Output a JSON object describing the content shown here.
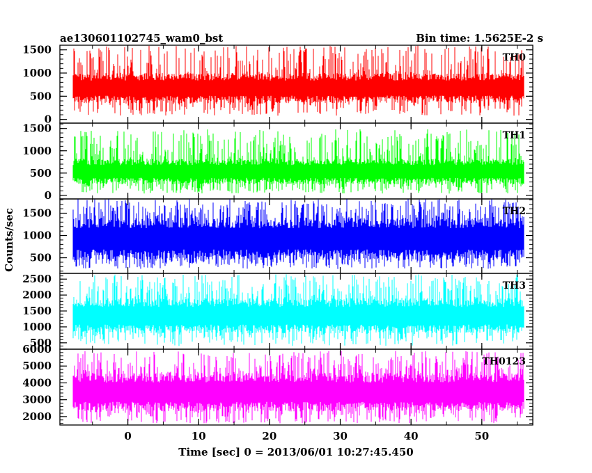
{
  "header": {
    "left_title": "ae130601102745_wam0_bst",
    "right_title": "Bin time: 1.5625E-2 s"
  },
  "chart_data": {
    "type": "line",
    "title": "ae130601102745_wam0_bst",
    "subtitle": "Bin time: 1.5625E-2 s",
    "xlabel": "Time [sec] 0 = 2013/06/01 10:27:45.450",
    "ylabel": "Counts/sec",
    "xlim": [
      -9.6,
      57.2
    ],
    "x_ticks": [
      "0",
      "10",
      "20",
      "30",
      "40",
      "50"
    ],
    "x_tick_values": [
      0,
      10,
      20,
      30,
      40,
      50
    ],
    "data_x_range": [
      -7.8,
      56.0
    ],
    "bin_time_s": 0.015625,
    "grid": false,
    "legend": "none",
    "panels": [
      {
        "name": "TH0",
        "color": "#ff0000",
        "ylim": [
          -80,
          1600
        ],
        "y_ticks": [
          0,
          500,
          1000,
          1500
        ],
        "y_tick_labels": [
          "0",
          "500",
          "1000",
          "1500"
        ],
        "typical_range": [
          350,
          1000
        ],
        "approx_min": 80,
        "approx_max": 1600
      },
      {
        "name": "TH1",
        "color": "#00ff00",
        "ylim": [
          -80,
          1620
        ],
        "y_ticks": [
          0,
          500,
          1000,
          1500
        ],
        "y_tick_labels": [
          "0",
          "500",
          "1000",
          "1500"
        ],
        "typical_range": [
          250,
          820
        ],
        "approx_min": 40,
        "approx_max": 1480
      },
      {
        "name": "TH2",
        "color": "#0000ff",
        "ylim": [
          150,
          1820
        ],
        "y_ticks": [
          500,
          1000,
          1500
        ],
        "y_tick_labels": [
          "500",
          "1000",
          "1500"
        ],
        "typical_range": [
          450,
          1400
        ],
        "approx_min": 250,
        "approx_max": 1820
      },
      {
        "name": "TH3",
        "color": "#00ffff",
        "ylim": [
          300,
          2680
        ],
        "y_ticks": [
          500,
          1000,
          1500,
          2000,
          2500
        ],
        "y_tick_labels": [
          "500",
          "1000",
          "1500",
          "2000",
          "2500"
        ],
        "typical_range": [
          800,
          1900
        ],
        "approx_min": 400,
        "approx_max": 2650
      },
      {
        "name": "TH0123",
        "color": "#ff00ff",
        "ylim": [
          1500,
          6000
        ],
        "y_ticks": [
          2000,
          3000,
          4000,
          5000,
          6000
        ],
        "y_tick_labels": [
          "2000",
          "3000",
          "4000",
          "5000",
          "6000"
        ],
        "typical_range": [
          2300,
          4600
        ],
        "approx_min": 1600,
        "approx_max": 5900
      }
    ]
  }
}
